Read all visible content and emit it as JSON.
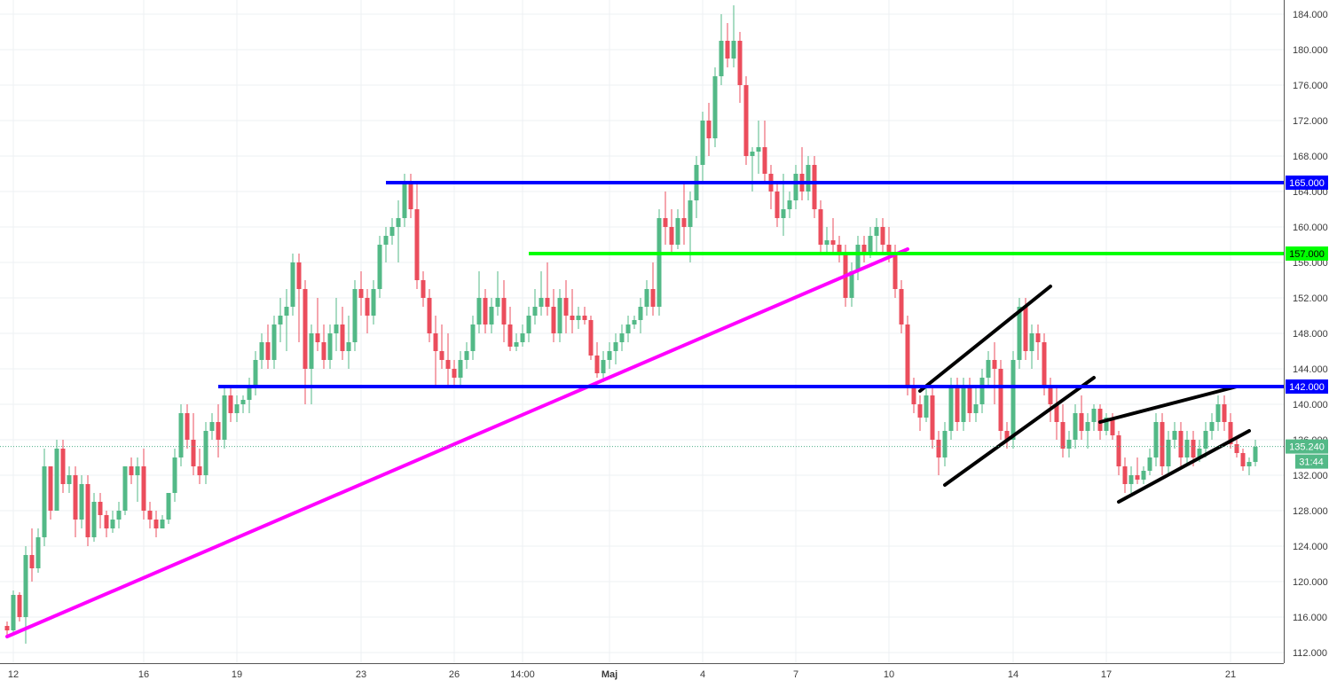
{
  "chart_data": {
    "type": "candlestick",
    "title": "",
    "xlabel": "",
    "ylabel": "",
    "ylim": [
      110,
      186
    ],
    "y_ticks": [
      "112.000",
      "116.000",
      "120.000",
      "124.000",
      "128.000",
      "132.000",
      "136.000",
      "140.000",
      "144.000",
      "148.000",
      "152.000",
      "156.000",
      "160.000",
      "164.000",
      "168.000",
      "172.000",
      "176.000",
      "180.000",
      "184.000"
    ],
    "x_ticks": [
      "12",
      "16",
      "19",
      "23",
      "26",
      "14:00",
      "Maj",
      "4",
      "7",
      "10",
      "14",
      "17",
      "21"
    ],
    "x_tick_bar_index": [
      1,
      22,
      37,
      57,
      72,
      83,
      97,
      112,
      127,
      142,
      162,
      177,
      197
    ],
    "grid": true,
    "colors": {
      "up": "#53b987",
      "down": "#eb4d5c",
      "support": "#0000ff",
      "pivot": "#00ff00",
      "trend": "#ff00ff",
      "channel": "#000000",
      "price_dotted": "#4fb08a"
    },
    "candles": [
      [
        115,
        115.5,
        114,
        114.5
      ],
      [
        114.5,
        119,
        114,
        118.5
      ],
      [
        118.5,
        118.8,
        115.5,
        116
      ],
      [
        116,
        124,
        113,
        123
      ],
      [
        123,
        126,
        120,
        121.5
      ],
      [
        121.5,
        126,
        121,
        125
      ],
      [
        125,
        135,
        124,
        133
      ],
      [
        133,
        133,
        127,
        128
      ],
      [
        128,
        136,
        128,
        135
      ],
      [
        135,
        136,
        130,
        131
      ],
      [
        131,
        133,
        130,
        132
      ],
      [
        132,
        133,
        125,
        127
      ],
      [
        127,
        132,
        126,
        131
      ],
      [
        131,
        132,
        124,
        125
      ],
      [
        125,
        130,
        124.5,
        129
      ],
      [
        129,
        130,
        126,
        127.5
      ],
      [
        127.5,
        128,
        125,
        126
      ],
      [
        126,
        128,
        125.5,
        127
      ],
      [
        127,
        129,
        126,
        128
      ],
      [
        128,
        133,
        127.5,
        133
      ],
      [
        133,
        134,
        131,
        132
      ],
      [
        132,
        134,
        129,
        133
      ],
      [
        133,
        135,
        127,
        128
      ],
      [
        128,
        129,
        126,
        127
      ],
      [
        127,
        128,
        125,
        126
      ],
      [
        126,
        127.5,
        126,
        127
      ],
      [
        127,
        130,
        126.5,
        130
      ],
      [
        130,
        135,
        129,
        134
      ],
      [
        134,
        140,
        133,
        139
      ],
      [
        139,
        140,
        135,
        136
      ],
      [
        136,
        139,
        132,
        133
      ],
      [
        133,
        135,
        131,
        132
      ],
      [
        132,
        138,
        131,
        137
      ],
      [
        137,
        139,
        136,
        138
      ],
      [
        138,
        140,
        134,
        136
      ],
      [
        136,
        142,
        135,
        141
      ],
      [
        141,
        142,
        138,
        139
      ],
      [
        139,
        141,
        138,
        140
      ],
      [
        140,
        141,
        139,
        140.5
      ],
      [
        140.5,
        143,
        139,
        142
      ],
      [
        142,
        146,
        141,
        145
      ],
      [
        145,
        148,
        144,
        147
      ],
      [
        147,
        149,
        144,
        145
      ],
      [
        145,
        150,
        144,
        149
      ],
      [
        149,
        152,
        147,
        150
      ],
      [
        150,
        153,
        146,
        151
      ],
      [
        151,
        157,
        150,
        156
      ],
      [
        156,
        157,
        147,
        153
      ],
      [
        153,
        154,
        140,
        144
      ],
      [
        144,
        149,
        140,
        148
      ],
      [
        148,
        152,
        146,
        147
      ],
      [
        147,
        149,
        144,
        145
      ],
      [
        145,
        149,
        144,
        148
      ],
      [
        148,
        152,
        146,
        149
      ],
      [
        149,
        151,
        145,
        146
      ],
      [
        146,
        150,
        144,
        147
      ],
      [
        147,
        154,
        146,
        153
      ],
      [
        153,
        155,
        150,
        152
      ],
      [
        152,
        153,
        148,
        150
      ],
      [
        150,
        154,
        149,
        153
      ],
      [
        153,
        159,
        152,
        158
      ],
      [
        158,
        160,
        156,
        159
      ],
      [
        159,
        161,
        158,
        160
      ],
      [
        160,
        163,
        156,
        161
      ],
      [
        161,
        166,
        160,
        165
      ],
      [
        165,
        166,
        161,
        162
      ],
      [
        162,
        165,
        153,
        154
      ],
      [
        154,
        155,
        151,
        152
      ],
      [
        152,
        153,
        147,
        148
      ],
      [
        148,
        150,
        142,
        146
      ],
      [
        146,
        149,
        144,
        145
      ],
      [
        145,
        148,
        142,
        144
      ],
      [
        144,
        145,
        142,
        143
      ],
      [
        143,
        146,
        142,
        145
      ],
      [
        145,
        147,
        144,
        146
      ],
      [
        146,
        150,
        145,
        149
      ],
      [
        149,
        155,
        148,
        152
      ],
      [
        152,
        153,
        148,
        149
      ],
      [
        149,
        152,
        148,
        151
      ],
      [
        151,
        155,
        150,
        152
      ],
      [
        152,
        154,
        147,
        149
      ],
      [
        149,
        151,
        146,
        146.5
      ],
      [
        146.5,
        148,
        146,
        147
      ],
      [
        147,
        149,
        146.5,
        148
      ],
      [
        148,
        151,
        147,
        150
      ],
      [
        150,
        153,
        149,
        151
      ],
      [
        151,
        155,
        150,
        152
      ],
      [
        152,
        156,
        150,
        151
      ],
      [
        151,
        153,
        147,
        148
      ],
      [
        148,
        153,
        147,
        152
      ],
      [
        152,
        154,
        148,
        150
      ],
      [
        150,
        153,
        148,
        149.5
      ],
      [
        149.5,
        151,
        148.5,
        150
      ],
      [
        150,
        151,
        149,
        149.5
      ],
      [
        149.5,
        150,
        145,
        145.5
      ],
      [
        145.5,
        147,
        143,
        143.5
      ],
      [
        143.5,
        146,
        142.5,
        145
      ],
      [
        145,
        147,
        144,
        146
      ],
      [
        146,
        148,
        144.5,
        147
      ],
      [
        147,
        149,
        146,
        148
      ],
      [
        148,
        150,
        147,
        149
      ],
      [
        149,
        150,
        148.5,
        149.5
      ],
      [
        149.5,
        152,
        148,
        151
      ],
      [
        151,
        154,
        150,
        153
      ],
      [
        153,
        156,
        150,
        151
      ],
      [
        151,
        162,
        150,
        161
      ],
      [
        161,
        164,
        158,
        160
      ],
      [
        160,
        162,
        157,
        158
      ],
      [
        158,
        162,
        157.5,
        161
      ],
      [
        161,
        165,
        158,
        160
      ],
      [
        160,
        164,
        156,
        163
      ],
      [
        163,
        168,
        161,
        167
      ],
      [
        167,
        173,
        165,
        172
      ],
      [
        172,
        174,
        168,
        170
      ],
      [
        170,
        178,
        169,
        177
      ],
      [
        177,
        184,
        176,
        181
      ],
      [
        181,
        183,
        178,
        179
      ],
      [
        179,
        185,
        178,
        181
      ],
      [
        181,
        182,
        174,
        176
      ],
      [
        176,
        177,
        167,
        168
      ],
      [
        168,
        169,
        164,
        168.5
      ],
      [
        168.5,
        172,
        166,
        169
      ],
      [
        169,
        172,
        165,
        166
      ],
      [
        166,
        167,
        162,
        164
      ],
      [
        164,
        165,
        160,
        161
      ],
      [
        161,
        166,
        159,
        162
      ],
      [
        162,
        164,
        161,
        163
      ],
      [
        163,
        167,
        162,
        166
      ],
      [
        166,
        169,
        163,
        164
      ],
      [
        164,
        168,
        163,
        167
      ],
      [
        167,
        168,
        161,
        162
      ],
      [
        162,
        163,
        157,
        158
      ],
      [
        158,
        160,
        157,
        158.5
      ],
      [
        158.5,
        161,
        157,
        158
      ],
      [
        158,
        159,
        156,
        157
      ],
      [
        157,
        158,
        151,
        152
      ],
      [
        152,
        156,
        151,
        155
      ],
      [
        155,
        159,
        154,
        158
      ],
      [
        158,
        159,
        156,
        157
      ],
      [
        157,
        160,
        156.5,
        159
      ],
      [
        159,
        161,
        157,
        160
      ],
      [
        160,
        161,
        157,
        158
      ],
      [
        158,
        160,
        156,
        157
      ],
      [
        157,
        158,
        152,
        153
      ],
      [
        153,
        154,
        148,
        149
      ],
      [
        149,
        150,
        141,
        142
      ],
      [
        142,
        143,
        139,
        140
      ],
      [
        140,
        141,
        137,
        138.5
      ],
      [
        138.5,
        142,
        138,
        141
      ],
      [
        141,
        142,
        135,
        136
      ],
      [
        136,
        137,
        132,
        134
      ],
      [
        134,
        138,
        133,
        137
      ],
      [
        137,
        143,
        136,
        142
      ],
      [
        142,
        143,
        137,
        138
      ],
      [
        138,
        143,
        137,
        142
      ],
      [
        142,
        143,
        138,
        139
      ],
      [
        139,
        142,
        138,
        140
      ],
      [
        140,
        144,
        139,
        143
      ],
      [
        143,
        146,
        142,
        145
      ],
      [
        145,
        147,
        140,
        144
      ],
      [
        144,
        145,
        136,
        137
      ],
      [
        137,
        138,
        135,
        136
      ],
      [
        136,
        146,
        135,
        145
      ],
      [
        145,
        152,
        144,
        151
      ],
      [
        151,
        152,
        145,
        146
      ],
      [
        146,
        149,
        144,
        148
      ],
      [
        148,
        149,
        145,
        147
      ],
      [
        147,
        148,
        141,
        142
      ],
      [
        142,
        143,
        138,
        140
      ],
      [
        140,
        142,
        136,
        138
      ],
      [
        138,
        140,
        134,
        135
      ],
      [
        135,
        137,
        134,
        136
      ],
      [
        136,
        140,
        135,
        139
      ],
      [
        139,
        141,
        136,
        137
      ],
      [
        137,
        139,
        135,
        138
      ],
      [
        138,
        140,
        137,
        139.5
      ],
      [
        139.5,
        140,
        136,
        137
      ],
      [
        137,
        139,
        136.5,
        138.5
      ],
      [
        138.5,
        139,
        136,
        136.5
      ],
      [
        136.5,
        137,
        132,
        133
      ],
      [
        133,
        134,
        130,
        131
      ],
      [
        131,
        133,
        130,
        132
      ],
      [
        132,
        134,
        131,
        131.5
      ],
      [
        131.5,
        133,
        131,
        132.5
      ],
      [
        132.5,
        135,
        132,
        134
      ],
      [
        134,
        139,
        133,
        138
      ],
      [
        138,
        139,
        132,
        133
      ],
      [
        133,
        137,
        132,
        136
      ],
      [
        136,
        138,
        135,
        137
      ],
      [
        137,
        138,
        133,
        134
      ],
      [
        134,
        137,
        133,
        136
      ],
      [
        136,
        137,
        133,
        134
      ],
      [
        134,
        136,
        133.5,
        135
      ],
      [
        135,
        138,
        134,
        137
      ],
      [
        137,
        139,
        136,
        138
      ],
      [
        138,
        141,
        137,
        140
      ],
      [
        140,
        141,
        137,
        138
      ],
      [
        138,
        139,
        135,
        135.5
      ],
      [
        135.5,
        136,
        134,
        134.5
      ],
      [
        134.5,
        135,
        132.5,
        133
      ],
      [
        133,
        134,
        132,
        133.5
      ],
      [
        133.5,
        136,
        133,
        135.2
      ]
    ],
    "horizontal_lines": [
      {
        "price": 165,
        "label": "165.000",
        "color": "#0000ff",
        "from_bar": 61
      },
      {
        "price": 157,
        "label": "157.000",
        "color": "#00ff00",
        "from_bar": 84
      },
      {
        "price": 142,
        "label": "142.000",
        "color": "#0000ff",
        "from_bar": 34
      }
    ],
    "trend_lines": [
      {
        "color": "#ff00ff",
        "points": [
          [
            0,
            113.8
          ],
          [
            145,
            157.5
          ]
        ]
      },
      {
        "color": "#000000",
        "points": [
          [
            147,
            141.5
          ],
          [
            168,
            153.3
          ]
        ]
      },
      {
        "color": "#000000",
        "points": [
          [
            151,
            130.9
          ],
          [
            175,
            143
          ]
        ]
      },
      {
        "color": "#000000",
        "points": [
          [
            176,
            138
          ],
          [
            198,
            142
          ]
        ]
      },
      {
        "color": "#000000",
        "points": [
          [
            179,
            129
          ],
          [
            200,
            137
          ]
        ]
      }
    ],
    "last_price": {
      "price": 135.24,
      "label": "135.240",
      "countdown": "31:44"
    }
  }
}
